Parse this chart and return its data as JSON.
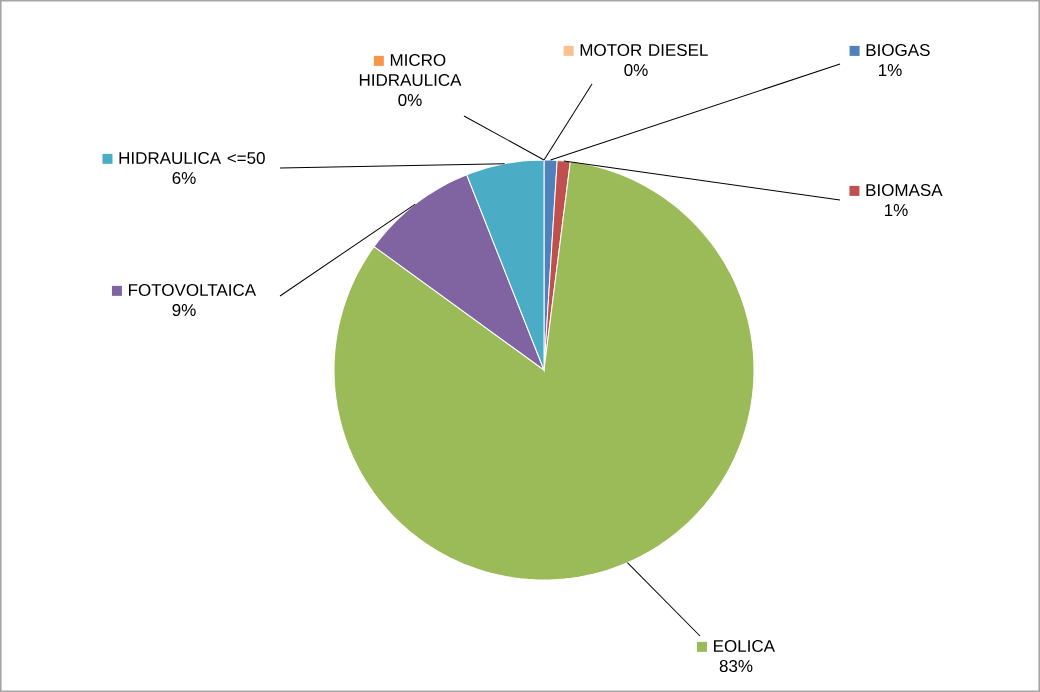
{
  "chart_data": {
    "type": "pie",
    "categories": [
      "BIOGAS",
      "BIOMASA",
      "EOLICA",
      "FOTOVOLTAICA",
      "HIDRAULICA <=50",
      "MICRO HIDRAULICA",
      "MOTOR DIESEL"
    ],
    "values": [
      1,
      1,
      83,
      9,
      6,
      0,
      0
    ],
    "value_labels": [
      "1%",
      "1%",
      "83%",
      "9%",
      "6%",
      "0%",
      "0%"
    ],
    "legend": "top left",
    "colors": [
      "#4f81bd",
      "#c0504d",
      "#9bbb59",
      "#8064a2",
      "#4bacc6",
      "#f79646",
      "#fac090"
    ]
  }
}
